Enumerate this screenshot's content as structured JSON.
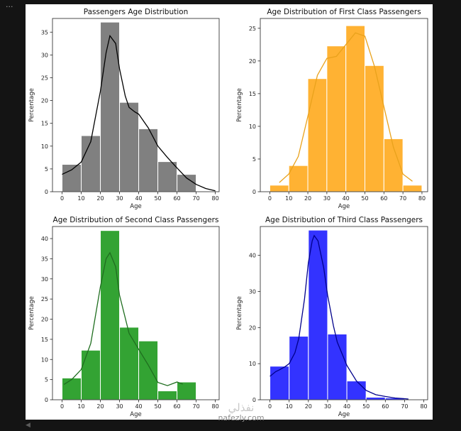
{
  "notebook": {
    "cell_prompt": "...",
    "scroll_icon": "scroll-left-icon"
  },
  "watermark": {
    "logo": "نفذلي",
    "text": "nafezly.com"
  },
  "colors": {
    "background": "#141414",
    "figure": "#ffffff"
  },
  "chart_data": [
    {
      "type": "bar",
      "title": "Passengers Age Distribution",
      "xlabel": "Age",
      "ylabel": "Percentage",
      "color": "#808080",
      "kde_color": "#000000",
      "bin_edges": [
        0,
        10,
        20,
        30,
        40,
        50,
        60,
        70
      ],
      "values": [
        6,
        12.3,
        37.2,
        19.6,
        13.8,
        6.6,
        3.8
      ],
      "xlim": [
        -5,
        82
      ],
      "ylim": [
        0,
        38
      ],
      "xticks": [
        0,
        10,
        20,
        30,
        40,
        50,
        60,
        70,
        80
      ],
      "yticks": [
        0,
        5,
        10,
        15,
        20,
        25,
        30,
        35
      ],
      "kde": {
        "x": [
          0,
          5,
          10,
          15,
          20,
          23,
          25,
          28,
          30,
          33,
          35,
          38,
          40,
          45,
          50,
          55,
          60,
          65,
          70,
          75,
          80
        ],
        "y": [
          3.8,
          4.8,
          6.5,
          11,
          22,
          30.5,
          34.2,
          32.5,
          27,
          21,
          18.5,
          17.5,
          17,
          14,
          10,
          7.5,
          5.2,
          3,
          1.6,
          0.7,
          0.2
        ]
      }
    },
    {
      "type": "bar",
      "title": "Age Distribution of First Class Passengers",
      "xlabel": "Age",
      "ylabel": "Percentage",
      "color": "#ffb233",
      "kde_color": "#e9a21c",
      "bin_edges": [
        0,
        10,
        20,
        30,
        40,
        50,
        60,
        70,
        80
      ],
      "values": [
        1,
        4,
        17.3,
        22.3,
        25.4,
        19.3,
        8.1,
        1
      ],
      "xlim": [
        -5,
        83
      ],
      "ylim": [
        0,
        26.5
      ],
      "xticks": [
        0,
        10,
        20,
        30,
        40,
        50,
        60,
        70,
        80
      ],
      "yticks": [
        0,
        5,
        10,
        15,
        20,
        25
      ],
      "kde": {
        "x": [
          5,
          10,
          15,
          20,
          25,
          30,
          35,
          40,
          45,
          50,
          55,
          60,
          65,
          70,
          75
        ],
        "y": [
          1.4,
          2.7,
          5.4,
          11.5,
          17.8,
          20.4,
          20.7,
          22.5,
          24.3,
          23.8,
          19.2,
          13,
          6.8,
          2.7,
          1.6
        ]
      }
    },
    {
      "type": "bar",
      "title": "Age Distribution of Second Class Passengers",
      "xlabel": "Age",
      "ylabel": "Percentage",
      "color": "#33a333",
      "kde_color": "#1f6e1f",
      "bin_edges": [
        0,
        10,
        20,
        30,
        40,
        50,
        60,
        70
      ],
      "values": [
        5.4,
        12.3,
        42,
        18,
        14.6,
        2.2,
        4.4
      ],
      "xlim": [
        -5,
        82
      ],
      "ylim": [
        0,
        43
      ],
      "xticks": [
        0,
        10,
        20,
        30,
        40,
        50,
        60,
        70,
        80
      ],
      "yticks": [
        0,
        5,
        10,
        15,
        20,
        25,
        30,
        35,
        40
      ],
      "kde": {
        "x": [
          1,
          5,
          10,
          15,
          20,
          23,
          25,
          28,
          30,
          35,
          40,
          45,
          50,
          55,
          60,
          63
        ],
        "y": [
          3.8,
          5,
          7.5,
          14,
          28,
          35,
          36.5,
          33,
          26,
          16.5,
          12.5,
          8.6,
          4.3,
          3.5,
          4.4,
          3.9
        ]
      }
    },
    {
      "type": "bar",
      "title": "Age Distribution of Third Class Passengers",
      "xlabel": "Age",
      "ylabel": "Percentage",
      "color": "#3333ff",
      "kde_color": "#00008b",
      "bin_edges": [
        0,
        10,
        20,
        30,
        40,
        50,
        60,
        70
      ],
      "values": [
        9.3,
        17.6,
        47,
        18.2,
        5.2,
        0.7,
        0.5
      ],
      "xlim": [
        -5,
        82
      ],
      "ylim": [
        0,
        48
      ],
      "xticks": [
        0,
        10,
        20,
        30,
        40,
        50,
        60,
        70,
        80
      ],
      "yticks": [
        0,
        10,
        20,
        30,
        40
      ],
      "kde": {
        "x": [
          0,
          3,
          5,
          8,
          10,
          13,
          15,
          18,
          20,
          22,
          23,
          25,
          28,
          30,
          33,
          35,
          40,
          45,
          50,
          55,
          60,
          65,
          70,
          72
        ],
        "y": [
          6.5,
          7.8,
          8.3,
          9.2,
          10,
          13,
          17,
          28,
          38,
          44,
          45.5,
          44,
          36.5,
          29,
          20.5,
          16,
          9.5,
          5.2,
          2.6,
          1.4,
          0.9,
          0.5,
          0.3,
          0.2
        ]
      }
    }
  ]
}
